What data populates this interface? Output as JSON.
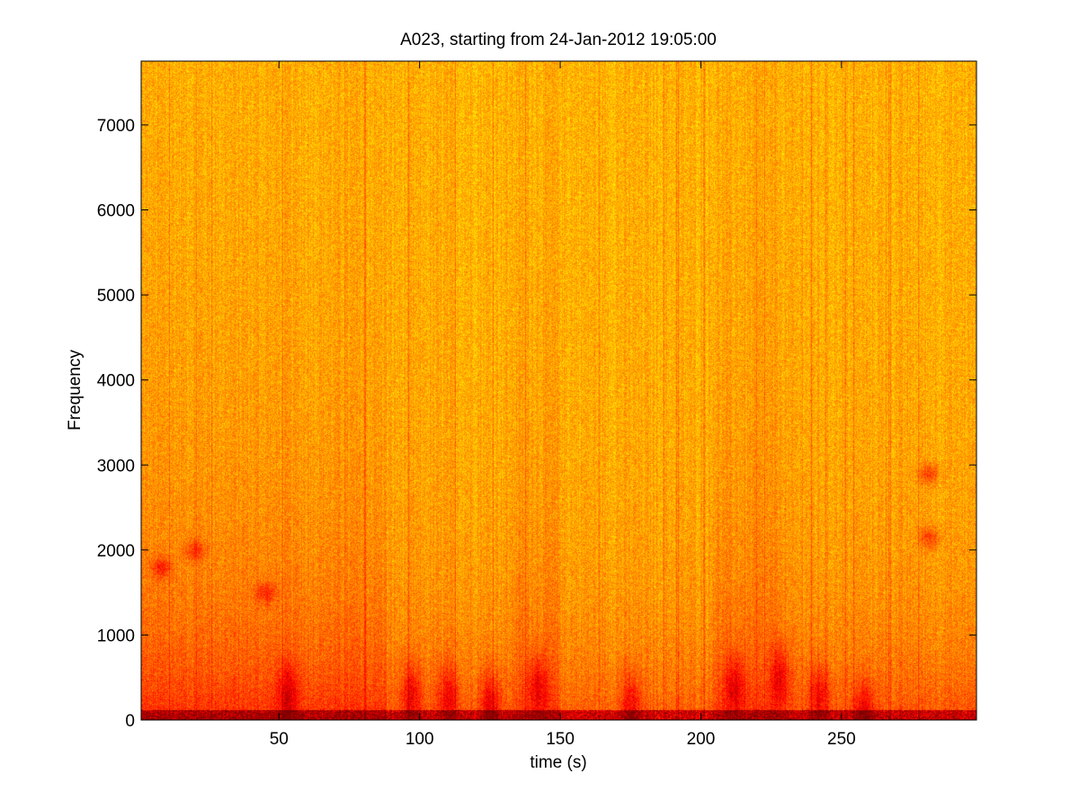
{
  "chart_data": {
    "type": "heatmap",
    "title": "A023, starting from 24-Jan-2012 19:05:00",
    "xlabel": "time (s)",
    "ylabel": "Frequency",
    "xlim": [
      1,
      298
    ],
    "ylim": [
      0,
      7750
    ],
    "xticks": [
      50,
      100,
      150,
      200,
      250
    ],
    "yticks": [
      0,
      1000,
      2000,
      3000,
      4000,
      5000,
      6000,
      7000
    ],
    "grid": false,
    "colormap": "jet",
    "colors": {
      "background": "#ffffff",
      "axis": "#000000",
      "low_intensity": "#7de87f",
      "mid_intensity": "#f5f01e",
      "high_intensity": "#d41a00"
    },
    "time_bands": [
      {
        "t0": 1,
        "t1": 88,
        "intensity": 0.62
      },
      {
        "t0": 88,
        "t1": 133,
        "intensity": 0.28
      },
      {
        "t0": 133,
        "t1": 150,
        "intensity": 0.5
      },
      {
        "t0": 150,
        "t1": 204,
        "intensity": 0.22
      },
      {
        "t0": 204,
        "t1": 230,
        "intensity": 0.55
      },
      {
        "t0": 230,
        "t1": 298,
        "intensity": 0.3
      }
    ],
    "hot_spots": [
      {
        "t": 8,
        "f": 1800,
        "intensity": 0.85
      },
      {
        "t": 20,
        "f": 2000,
        "intensity": 0.8
      },
      {
        "t": 45,
        "f": 1500,
        "intensity": 0.8
      },
      {
        "t": 53,
        "f": 300,
        "intensity": 0.95
      },
      {
        "t": 97,
        "f": 300,
        "intensity": 0.9
      },
      {
        "t": 110,
        "f": 300,
        "intensity": 0.88
      },
      {
        "t": 125,
        "f": 200,
        "intensity": 0.97
      },
      {
        "t": 142,
        "f": 400,
        "intensity": 0.95
      },
      {
        "t": 175,
        "f": 200,
        "intensity": 0.82
      },
      {
        "t": 212,
        "f": 400,
        "intensity": 0.95
      },
      {
        "t": 228,
        "f": 500,
        "intensity": 0.92
      },
      {
        "t": 242,
        "f": 300,
        "intensity": 0.88
      },
      {
        "t": 258,
        "f": 100,
        "intensity": 0.9
      },
      {
        "t": 281,
        "f": 2900,
        "intensity": 0.9
      },
      {
        "t": 281,
        "f": 2150,
        "intensity": 0.85
      }
    ]
  }
}
